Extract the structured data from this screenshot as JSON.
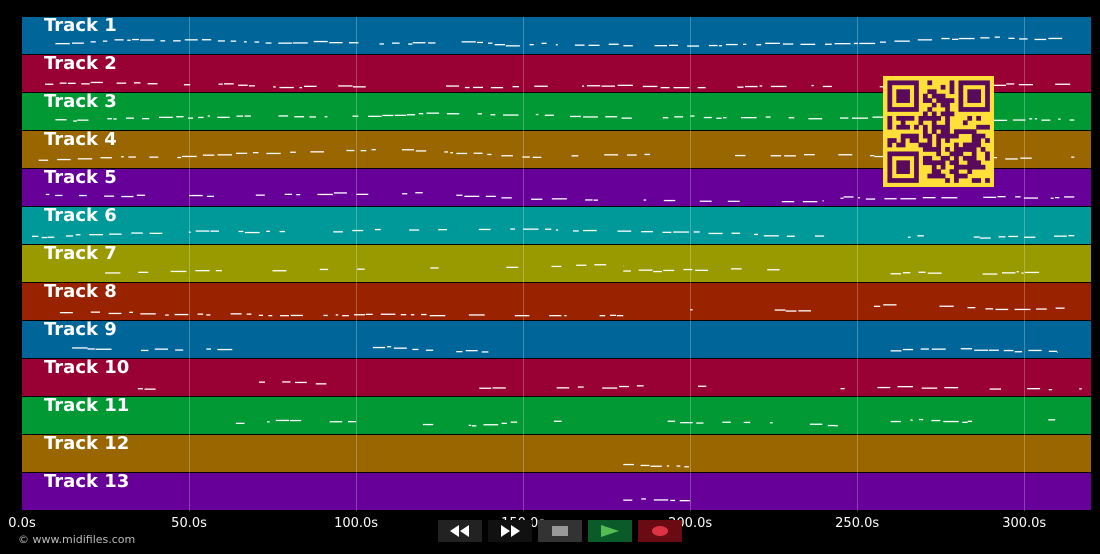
{
  "colors": {
    "background": "#000000",
    "track_palette": [
      "#006699",
      "#990033",
      "#009933",
      "#996600",
      "#660099",
      "#009999",
      "#999900",
      "#992200"
    ],
    "note": "#ffffff",
    "qr_foreground": "#5a0a5a",
    "qr_background": "#ffe03a"
  },
  "tracks": [
    {
      "label": "Track 1"
    },
    {
      "label": "Track 2"
    },
    {
      "label": "Track 3"
    },
    {
      "label": "Track 4"
    },
    {
      "label": "Track 5"
    },
    {
      "label": "Track 6"
    },
    {
      "label": "Track 7"
    },
    {
      "label": "Track 8"
    },
    {
      "label": "Track 9"
    },
    {
      "label": "Track 10"
    },
    {
      "label": "Track 11"
    },
    {
      "label": "Track 12"
    },
    {
      "label": "Track 13"
    }
  ],
  "timeline": {
    "max_seconds": 320,
    "ticks": [
      {
        "t": 0,
        "label": "0.0s"
      },
      {
        "t": 50,
        "label": "50.0s"
      },
      {
        "t": 100,
        "label": "100.0s"
      },
      {
        "t": 150,
        "label": "150.0s"
      },
      {
        "t": 200,
        "label": "200.0s"
      },
      {
        "t": 250,
        "label": "250.0s"
      },
      {
        "t": 300,
        "label": "300.0s"
      }
    ]
  },
  "note_density": [
    [
      [
        10,
        315,
        0.9
      ]
    ],
    [
      [
        3,
        315,
        0.6
      ]
    ],
    [
      [
        10,
        315,
        0.8
      ]
    ],
    [
      [
        5,
        315,
        0.7
      ]
    ],
    [
      [
        3,
        65,
        0.8
      ],
      [
        70,
        120,
        0.6
      ],
      [
        130,
        240,
        0.6
      ],
      [
        245,
        315,
        0.6
      ]
    ],
    [
      [
        3,
        315,
        0.6
      ]
    ],
    [
      [
        15,
        65,
        0.5
      ],
      [
        75,
        130,
        0.5
      ],
      [
        145,
        180,
        0.5
      ],
      [
        180,
        250,
        0.5
      ],
      [
        260,
        310,
        0.5
      ]
    ],
    [
      [
        10,
        180,
        0.7
      ],
      [
        200,
        240,
        0.6
      ],
      [
        255,
        318,
        0.6
      ]
    ],
    [
      [
        15,
        65,
        0.4
      ],
      [
        105,
        130,
        0.5
      ],
      [
        130,
        152,
        0.6
      ],
      [
        260,
        310,
        0.6
      ]
    ],
    [
      [
        30,
        40,
        0.4
      ],
      [
        65,
        100,
        0.5
      ],
      [
        130,
        205,
        0.6
      ],
      [
        245,
        318,
        0.6
      ]
    ],
    [
      [
        55,
        100,
        0.5
      ],
      [
        120,
        245,
        0.6
      ],
      [
        260,
        310,
        0.6
      ]
    ],
    [
      [
        180,
        200,
        0.9
      ]
    ],
    [
      [
        180,
        200,
        0.9
      ]
    ]
  ],
  "transport": {
    "rewind": "rewind-icon",
    "fast_forward": "fast-forward-icon",
    "stop": "stop-icon",
    "play": "play-icon",
    "record": "record-icon"
  },
  "qr_icon": "qr-code",
  "footer": {
    "copyright": "© www.midifiles.com"
  }
}
